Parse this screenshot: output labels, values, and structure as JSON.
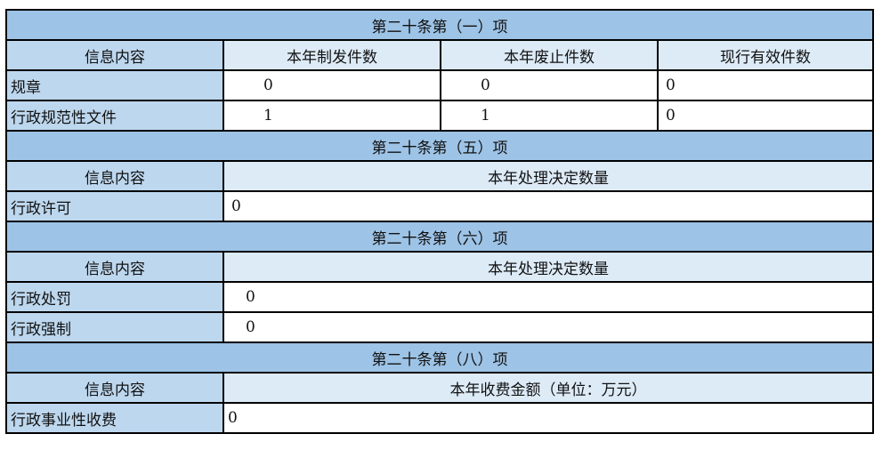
{
  "sections": [
    {
      "title": "第二十条第（一）项",
      "header": [
        "信息内容",
        "本年制发件数",
        "本年废止件数",
        "现行有效件数"
      ],
      "rows": [
        {
          "label": "规章",
          "values": [
            "0",
            "0",
            "0"
          ]
        },
        {
          "label": "行政规范性文件",
          "values": [
            "1",
            "1",
            "0"
          ]
        }
      ]
    },
    {
      "title": "第二十条第（五）项",
      "header": [
        "信息内容",
        "本年处理决定数量"
      ],
      "rows": [
        {
          "label": "行政许可",
          "value": "0"
        }
      ]
    },
    {
      "title": "第二十条第（六）项",
      "header": [
        "信息内容",
        "本年处理决定数量"
      ],
      "rows": [
        {
          "label": "行政处罚",
          "value": "0"
        },
        {
          "label": "行政强制",
          "value": "0"
        }
      ]
    },
    {
      "title": "第二十条第（八）项",
      "header": [
        "信息内容",
        "本年收费金额（单位：万元）"
      ],
      "rows": [
        {
          "label": "行政事业性收费",
          "value": "0"
        }
      ]
    }
  ],
  "colors": {
    "title_bg": "#9dc3e6",
    "label_bg": "#bdd7ee",
    "header_bg": "#ddebf7"
  }
}
